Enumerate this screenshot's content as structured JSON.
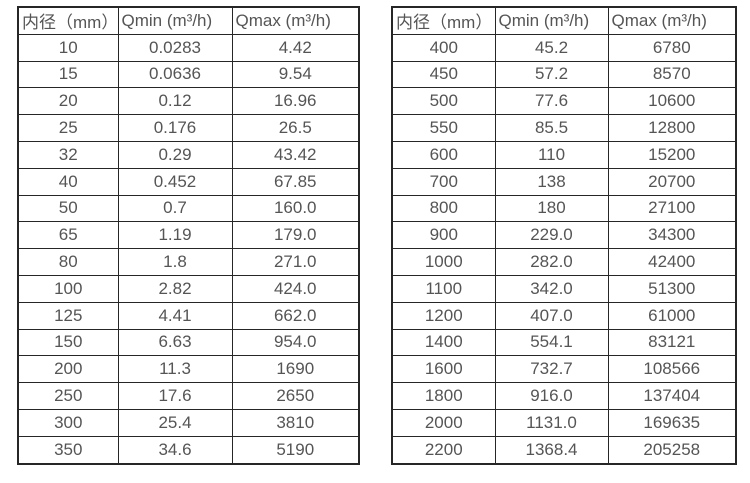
{
  "colors": {
    "background": "#ffffff",
    "border": "#262626",
    "text": "#555555"
  },
  "tables": [
    {
      "name": "small-diameter-flow-ranges",
      "headers": [
        "内径（mm）",
        "Qmin (m³/h)",
        "Qmax (m³/h)"
      ],
      "rows": [
        [
          "10",
          "0.0283",
          "4.42"
        ],
        [
          "15",
          "0.0636",
          "9.54"
        ],
        [
          "20",
          "0.12",
          "16.96"
        ],
        [
          "25",
          "0.176",
          "26.5"
        ],
        [
          "32",
          "0.29",
          "43.42"
        ],
        [
          "40",
          "0.452",
          "67.85"
        ],
        [
          "50",
          "0.7",
          "160.0"
        ],
        [
          "65",
          "1.19",
          "179.0"
        ],
        [
          "80",
          "1.8",
          "271.0"
        ],
        [
          "100",
          "2.82",
          "424.0"
        ],
        [
          "125",
          "4.41",
          "662.0"
        ],
        [
          "150",
          "6.63",
          "954.0"
        ],
        [
          "200",
          "11.3",
          "1690"
        ],
        [
          "250",
          "17.6",
          "2650"
        ],
        [
          "300",
          "25.4",
          "3810"
        ],
        [
          "350",
          "34.6",
          "5190"
        ]
      ]
    },
    {
      "name": "large-diameter-flow-ranges",
      "headers": [
        "内径（mm）",
        "Qmin (m³/h)",
        "Qmax (m³/h)"
      ],
      "rows": [
        [
          "400",
          "45.2",
          "6780"
        ],
        [
          "450",
          "57.2",
          "8570"
        ],
        [
          "500",
          "77.6",
          "10600"
        ],
        [
          "550",
          "85.5",
          "12800"
        ],
        [
          "600",
          "110",
          "15200"
        ],
        [
          "700",
          "138",
          "20700"
        ],
        [
          "800",
          "180",
          "27100"
        ],
        [
          "900",
          "229.0",
          "34300"
        ],
        [
          "1000",
          "282.0",
          "42400"
        ],
        [
          "1100",
          "342.0",
          "51300"
        ],
        [
          "1200",
          "407.0",
          "61000"
        ],
        [
          "1400",
          "554.1",
          "83121"
        ],
        [
          "1600",
          "732.7",
          "108566"
        ],
        [
          "1800",
          "916.0",
          "137404"
        ],
        [
          "2000",
          "1131.0",
          "169635"
        ],
        [
          "2200",
          "1368.4",
          "205258"
        ]
      ]
    }
  ]
}
